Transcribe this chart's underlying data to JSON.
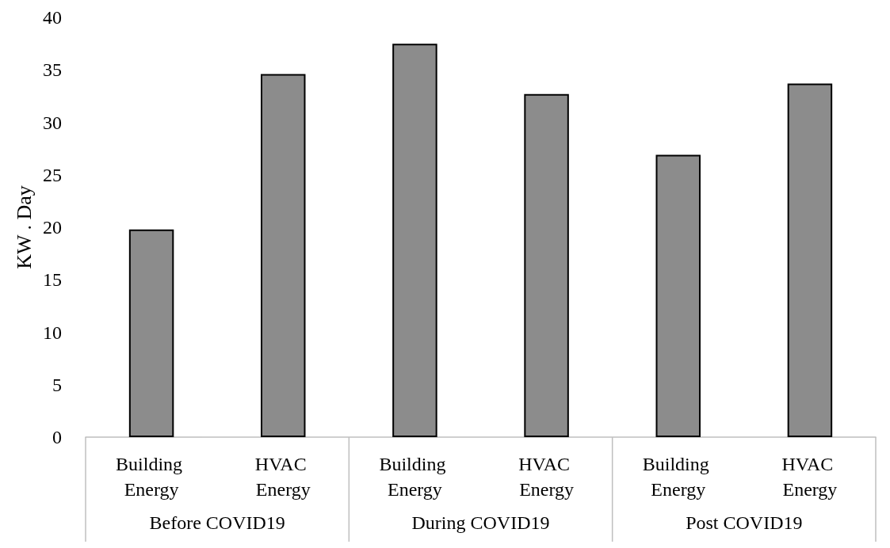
{
  "chart_data": {
    "type": "bar",
    "ylabel": "KW . Day",
    "categories": [
      "Building Energy",
      "HVAC Energy",
      "Building Energy",
      "HVAC Energy",
      "Building Energy",
      "HVAC Energy"
    ],
    "values": [
      19.8,
      34.6,
      37.5,
      32.7,
      26.9,
      33.7
    ],
    "color": "#8c8c8c",
    "ylim": [
      0,
      40
    ],
    "yticks": [
      0,
      5,
      10,
      15,
      20,
      25,
      30,
      35,
      40
    ],
    "grid": false,
    "annotations": [
      "Before COVID19",
      "During COVID19",
      "Post COVID19"
    ]
  }
}
